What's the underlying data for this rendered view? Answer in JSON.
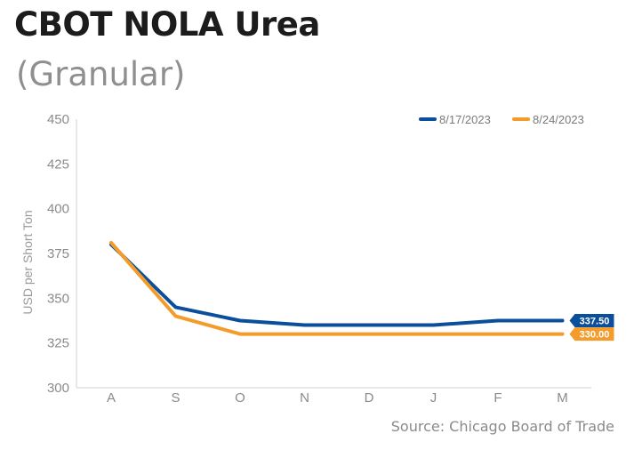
{
  "header": {
    "title": "CBOT NOLA Urea",
    "subtitle": "(Granular)"
  },
  "footer": {
    "source": "Source: Chicago Board of Trade"
  },
  "chart_data": {
    "type": "line",
    "title": "CBOT NOLA Urea",
    "subtitle": "(Granular)",
    "xlabel": "",
    "ylabel": "USD per Short Ton",
    "categories": [
      "A",
      "S",
      "O",
      "N",
      "D",
      "J",
      "F",
      "M"
    ],
    "ylim": [
      300,
      450
    ],
    "yticks": [
      450,
      425,
      400,
      375,
      350,
      325,
      300
    ],
    "grid": false,
    "legend_position": "top-right",
    "series": [
      {
        "name": "8/17/2023",
        "color": "#0b4f9c",
        "values": [
          380,
          345,
          337.5,
          335,
          335,
          335,
          337.5,
          337.5
        ],
        "end_label": "337.50"
      },
      {
        "name": "8/24/2023",
        "color": "#f39c2b",
        "values": [
          381,
          340,
          330,
          330,
          330,
          330,
          330,
          330
        ],
        "end_label": "330.00"
      }
    ]
  }
}
